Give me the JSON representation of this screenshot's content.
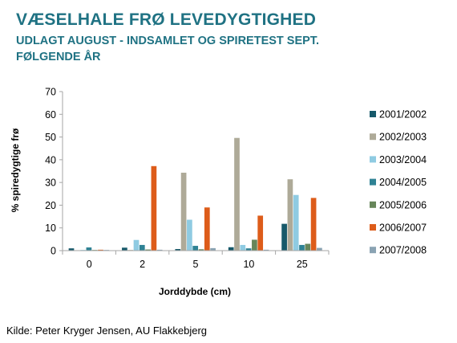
{
  "header": {
    "title": "VÆSELHALE FRØ LEVEDYGTIGHED",
    "subtitle_line1": "UDLAGT AUGUST - INDSAMLET OG SPIRETEST SEPT.",
    "subtitle_line2": "FØLGENDE ÅR"
  },
  "footer": {
    "source": "Kilde: Peter Kryger Jensen, AU Flakkebjerg"
  },
  "chart_data": {
    "type": "bar",
    "xlabel": "Jorddybde (cm)",
    "ylabel": "% spiredygtige frø",
    "ylim": [
      0,
      70
    ],
    "yticks": [
      0,
      10,
      20,
      30,
      40,
      50,
      60,
      70
    ],
    "categories": [
      "0",
      "2",
      "5",
      "10",
      "25"
    ],
    "legend_position": "right",
    "grid": false,
    "series": [
      {
        "name": "2001/2002",
        "color": "#17596a",
        "values": [
          1,
          1.3,
          0.7,
          1.5,
          11.8
        ]
      },
      {
        "name": "2002/2003",
        "color": "#aeaa98",
        "values": [
          0.2,
          0.3,
          34.3,
          49.6,
          31.4
        ]
      },
      {
        "name": "2003/2004",
        "color": "#8fcbe2",
        "values": [
          0.3,
          4.7,
          13.6,
          2.5,
          24.5
        ]
      },
      {
        "name": "2004/2005",
        "color": "#2e8294",
        "values": [
          1.4,
          2.5,
          2.1,
          1.0,
          2.5
        ]
      },
      {
        "name": "2005/2006",
        "color": "#67865a",
        "values": [
          0.3,
          0.5,
          0.6,
          4.8,
          3.0
        ]
      },
      {
        "name": "2006/2007",
        "color": "#dd5c1a",
        "values": [
          0.4,
          37.2,
          19.0,
          15.4,
          23.2
        ]
      },
      {
        "name": "2007/2008",
        "color": "#8aa3b3",
        "values": [
          0.3,
          0.4,
          1.1,
          0.4,
          1.2
        ]
      }
    ]
  }
}
